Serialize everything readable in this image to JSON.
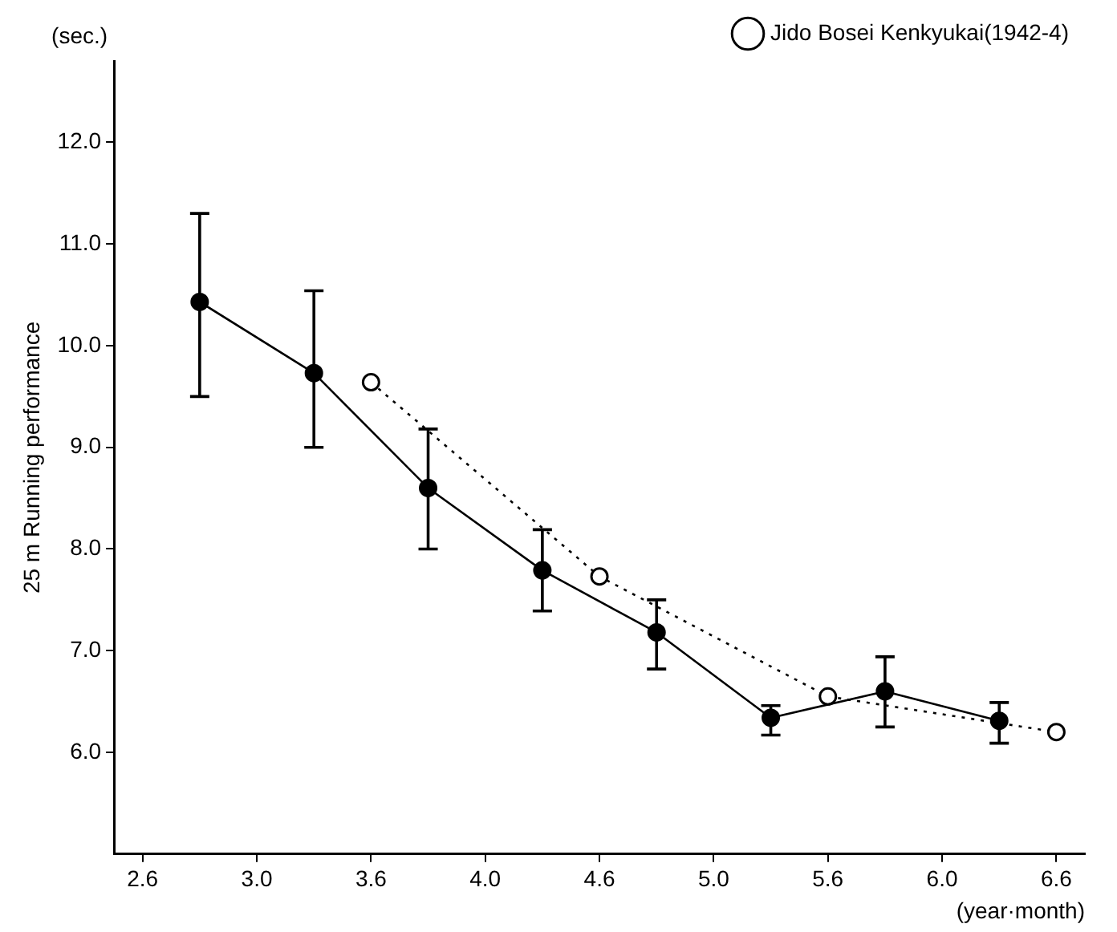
{
  "chart_data": {
    "type": "line",
    "xlabel": "(year·month)",
    "ylabel": "25 m Running performance",
    "annotations": [
      "(sec.)"
    ],
    "categories": [
      "2.6",
      null,
      "3.0",
      null,
      "3.6",
      null,
      "4.0",
      null,
      "4.6",
      null,
      "5.0",
      null,
      "5.6",
      null,
      "6.0",
      null,
      "6.6"
    ],
    "ylim": [
      5.0,
      12.8
    ],
    "yticks": [
      {
        "value": 6,
        "label": "6.0"
      },
      {
        "value": 7,
        "label": "7.0"
      },
      {
        "value": 8,
        "label": "8.0"
      },
      {
        "value": 9,
        "label": "9.0"
      },
      {
        "value": 10,
        "label": "10.0"
      },
      {
        "value": 11,
        "label": "11.0"
      },
      {
        "value": 12,
        "label": "12.0"
      }
    ],
    "grid": false,
    "legend": "top right",
    "marker": "circle",
    "series": [
      {
        "color": "#000000",
        "line_style": "solid",
        "values": [
          null,
          10.43,
          null,
          9.73,
          null,
          8.6,
          null,
          7.79,
          null,
          7.18,
          null,
          6.34,
          null,
          6.6,
          null,
          6.31,
          null
        ],
        "errors": [
          null,
          [
            9.5,
            11.3
          ],
          null,
          [
            9.0,
            10.54
          ],
          null,
          [
            8.0,
            9.18
          ],
          null,
          [
            7.39,
            8.19
          ],
          null,
          [
            6.82,
            7.5
          ],
          null,
          [
            6.17,
            6.46
          ],
          null,
          [
            6.25,
            6.94
          ],
          null,
          [
            6.09,
            6.49
          ],
          null
        ]
      },
      {
        "name": "Jido Bosei Kenkyukai(1942-4)",
        "color": "#000000",
        "line_style": "dotted",
        "values": [
          null,
          null,
          null,
          null,
          9.64,
          null,
          null,
          null,
          7.73,
          null,
          null,
          null,
          6.55,
          null,
          null,
          null,
          6.2
        ]
      }
    ]
  }
}
